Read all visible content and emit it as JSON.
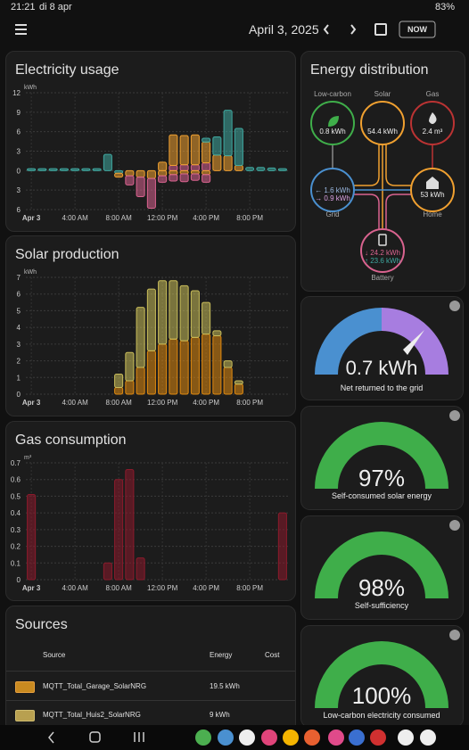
{
  "status_bar": {
    "time": "21:21",
    "date": "di 8 apr",
    "battery": "83%"
  },
  "toolbar": {
    "date": "April 3, 2025",
    "now_button": "NOW"
  },
  "chart_data": [
    {
      "type": "bar",
      "title": "Electricity usage",
      "y_unit": "kWh",
      "stacked": true,
      "x": [
        0,
        1,
        2,
        3,
        4,
        5,
        6,
        7,
        8,
        9,
        10,
        11,
        12,
        13,
        14,
        15,
        16,
        17,
        18,
        19,
        20,
        21,
        22,
        23
      ],
      "xlim": [
        -0.5,
        23.5
      ],
      "xticks": [
        {
          "value": 0,
          "label": "Apr 3"
        },
        {
          "value": 4,
          "label": "4:00 AM"
        },
        {
          "value": 8,
          "label": "8:00 AM"
        },
        {
          "value": 12,
          "label": "12:00 PM"
        },
        {
          "value": 16,
          "label": "4:00 PM"
        },
        {
          "value": 20,
          "label": "8:00 PM"
        }
      ],
      "ylim": [
        -6,
        12
      ],
      "yticks": [
        {
          "value": -6,
          "label": "6"
        },
        {
          "value": -3,
          "label": "3"
        },
        0,
        3,
        6,
        9,
        12
      ],
      "grid": true,
      "series": [
        {
          "color": "#d9638f",
          "values": [
            0,
            0,
            0,
            0,
            0,
            0,
            0,
            0,
            0,
            0,
            0,
            0,
            0,
            0.8,
            0.9,
            0.9,
            1.2,
            0,
            0,
            0,
            0,
            0,
            0,
            0
          ]
        },
        {
          "color": "#f0a030",
          "values": [
            0,
            0,
            0,
            0,
            0,
            0,
            0,
            0,
            0,
            0,
            0,
            0,
            1.3,
            4.7,
            4.5,
            4.6,
            3.2,
            2.4,
            2.3,
            0.8,
            0,
            0,
            0,
            0
          ]
        },
        {
          "color": "#3fa9a1",
          "values": [
            0.3,
            0.3,
            0.3,
            0.3,
            0.3,
            0.3,
            0.3,
            2.5,
            0,
            0,
            0,
            0,
            0,
            0,
            0,
            0,
            0.6,
            2.8,
            7.0,
            5.7,
            0.5,
            0.5,
            0.4,
            0.3
          ]
        },
        {
          "color": "#3fa9a1",
          "values": [
            0,
            0,
            0,
            0,
            0,
            0,
            0,
            0,
            -0.4,
            0,
            0,
            0,
            0,
            0,
            0,
            0,
            0,
            0,
            0,
            0,
            0,
            0,
            0,
            0
          ]
        },
        {
          "color": "#f0a030",
          "values": [
            0,
            0,
            0,
            0,
            0,
            0,
            0,
            0,
            -0.6,
            -0.8,
            -1.0,
            -1.2,
            -0.8,
            -0.6,
            -0.5,
            -0.5,
            -0.6,
            0,
            0,
            0,
            0,
            0,
            0,
            0
          ]
        },
        {
          "color": "#d9638f",
          "values": [
            0,
            0,
            0,
            0,
            0,
            0,
            0,
            0,
            0,
            -1.4,
            -3.0,
            -4.6,
            -1.0,
            -1.0,
            -1.2,
            -1.0,
            -1.2,
            0,
            0,
            0,
            0,
            0,
            0,
            0
          ]
        }
      ]
    },
    {
      "type": "bar",
      "title": "Solar production",
      "y_unit": "kWh",
      "stacked": true,
      "x": [
        0,
        1,
        2,
        3,
        4,
        5,
        6,
        7,
        8,
        9,
        10,
        11,
        12,
        13,
        14,
        15,
        16,
        17,
        18,
        19,
        20,
        21,
        22,
        23
      ],
      "xlim": [
        -0.5,
        23.5
      ],
      "xticks": [
        {
          "value": 0,
          "label": "Apr 3"
        },
        {
          "value": 4,
          "label": "4:00 AM"
        },
        {
          "value": 8,
          "label": "8:00 AM"
        },
        {
          "value": 12,
          "label": "12:00 PM"
        },
        {
          "value": 16,
          "label": "4:00 PM"
        },
        {
          "value": 20,
          "label": "8:00 PM"
        }
      ],
      "ylim": [
        0,
        7
      ],
      "yticks": [
        0,
        1,
        2,
        3,
        4,
        5,
        6,
        7
      ],
      "grid": true,
      "series": [
        {
          "color": "#e08a10",
          "values": [
            0,
            0,
            0,
            0,
            0,
            0,
            0,
            0,
            0.4,
            0.8,
            1.6,
            2.6,
            3.0,
            3.3,
            3.2,
            3.4,
            3.6,
            3.5,
            1.6,
            0.6,
            0,
            0,
            0,
            0
          ]
        },
        {
          "color": "#c9bd5a",
          "values": [
            0,
            0,
            0,
            0,
            0,
            0,
            0,
            0,
            0.8,
            1.7,
            3.6,
            3.7,
            3.8,
            3.5,
            3.3,
            2.8,
            1.9,
            0.3,
            0.4,
            0.2,
            0,
            0,
            0,
            0
          ]
        }
      ]
    },
    {
      "type": "bar",
      "title": "Gas consumption",
      "y_unit": "m³",
      "stacked": true,
      "x": [
        0,
        1,
        2,
        3,
        4,
        5,
        6,
        7,
        8,
        9,
        10,
        11,
        12,
        13,
        14,
        15,
        16,
        17,
        18,
        19,
        20,
        21,
        22,
        23
      ],
      "xlim": [
        -0.5,
        23.5
      ],
      "xticks": [
        {
          "value": 0,
          "label": "Apr 3"
        },
        {
          "value": 4,
          "label": "4:00 AM"
        },
        {
          "value": 8,
          "label": "8:00 AM"
        },
        {
          "value": 12,
          "label": "12:00 PM"
        },
        {
          "value": 16,
          "label": "4:00 PM"
        },
        {
          "value": 20,
          "label": "8:00 PM"
        }
      ],
      "ylim": [
        0,
        0.7
      ],
      "yticks": [
        0,
        0.1,
        0.2,
        0.3,
        0.4,
        0.5,
        0.6,
        0.7
      ],
      "grid": true,
      "series": [
        {
          "color": "#8b1a2b",
          "values": [
            0.51,
            0,
            0,
            0,
            0,
            0,
            0,
            0.1,
            0.6,
            0.66,
            0.13,
            0,
            0,
            0,
            0,
            0,
            0,
            0,
            0,
            0,
            0,
            0,
            0,
            0.4
          ]
        }
      ]
    }
  ],
  "energy_distribution": {
    "title": "Energy distribution",
    "nodes": [
      {
        "label": "Low-carbon",
        "value": "0.8 kWh"
      },
      {
        "label": "Solar",
        "value": "54.4 kWh"
      },
      {
        "label": "Gas",
        "value": "2.4 m³"
      },
      {
        "label": "Grid",
        "in": "← 1.6 kWh",
        "out": "→ 0.9 kWh"
      },
      {
        "label": "Home",
        "value": "53 kWh"
      },
      {
        "label": "Battery",
        "in": "↓ 24.2 kWh",
        "out": "↑ 23.6 kWh"
      }
    ]
  },
  "gauges": [
    {
      "value": "0.7 kWh",
      "label": "Net returned to the grid"
    },
    {
      "value": "97%",
      "label": "Self-consumed solar energy"
    },
    {
      "value": "98%",
      "label": "Self-sufficiency"
    },
    {
      "value": "100%",
      "label": "Low-carbon electricity consumed"
    }
  ],
  "sources": {
    "title": "Sources",
    "columns": [
      "Source",
      "Energy",
      "Cost"
    ],
    "rows": [
      [
        "MQTT_Total_Garage_SolarNRG",
        "19.5 kWh"
      ],
      [
        "MQTT_Total_Huis2_SolarNRG",
        "9 kWh"
      ]
    ]
  }
}
